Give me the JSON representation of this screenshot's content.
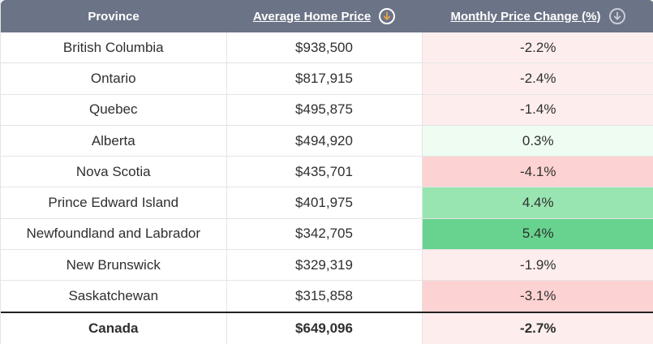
{
  "header": {
    "province": "Province",
    "avg_price": "Average Home Price",
    "monthly_change": "Monthly Price Change (%)"
  },
  "colors": {
    "header_bg": "#6b7386",
    "sort_active": "#e8a24a",
    "sort_inactive": "#c9ccd4",
    "neg_light": "#fdeeed",
    "neg_mid": "#fcd3d2",
    "pos_light": "#effcf1",
    "pos_mid": "#99e5b1",
    "pos_strong": "#67d38e"
  },
  "rows": [
    {
      "province": "British Columbia",
      "price": "$938,500",
      "change": "-2.2%",
      "tone": "neg_light"
    },
    {
      "province": "Ontario",
      "price": "$817,915",
      "change": "-2.4%",
      "tone": "neg_light"
    },
    {
      "province": "Quebec",
      "price": "$495,875",
      "change": "-1.4%",
      "tone": "neg_light"
    },
    {
      "province": "Alberta",
      "price": "$494,920",
      "change": "0.3%",
      "tone": "pos_light"
    },
    {
      "province": "Nova Scotia",
      "price": "$435,701",
      "change": "-4.1%",
      "tone": "neg_mid"
    },
    {
      "province": "Prince Edward Island",
      "price": "$401,975",
      "change": "4.4%",
      "tone": "pos_mid"
    },
    {
      "province": "Newfoundland and Labrador",
      "price": "$342,705",
      "change": "5.4%",
      "tone": "pos_strong"
    },
    {
      "province": "New Brunswick",
      "price": "$329,319",
      "change": "-1.9%",
      "tone": "neg_light"
    },
    {
      "province": "Saskatchewan",
      "price": "$315,858",
      "change": "-3.1%",
      "tone": "neg_mid"
    }
  ],
  "total": {
    "province": "Canada",
    "price": "$649,096",
    "change": "-2.7%",
    "tone": "neg_light"
  }
}
